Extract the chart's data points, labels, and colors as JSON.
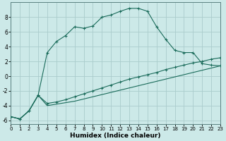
{
  "xlabel": "Humidex (Indice chaleur)",
  "background_color": "#cce9e8",
  "grid_color": "#aacccc",
  "line_color": "#1a6b5a",
  "xlim": [
    0,
    23
  ],
  "ylim": [
    -6.5,
    10.0
  ],
  "xticks": [
    0,
    1,
    2,
    3,
    4,
    5,
    6,
    7,
    8,
    9,
    10,
    11,
    12,
    13,
    14,
    15,
    16,
    17,
    18,
    19,
    20,
    21,
    22,
    23
  ],
  "yticks": [
    -6,
    -4,
    -2,
    0,
    2,
    4,
    6,
    8
  ],
  "curves": [
    {
      "x": [
        0,
        1,
        2,
        3,
        4,
        5,
        6,
        7,
        8,
        9,
        10,
        11,
        12,
        13,
        14,
        15,
        16,
        17,
        18,
        19,
        20,
        21,
        22,
        23
      ],
      "y": [
        -5.5,
        -5.8,
        -4.7,
        -2.6,
        3.2,
        4.7,
        5.5,
        6.7,
        6.5,
        6.8,
        8.0,
        8.3,
        8.8,
        9.2,
        9.2,
        8.8,
        6.7,
        5.0,
        3.5,
        3.2,
        3.2,
        1.7,
        1.5,
        1.4
      ],
      "marker": true,
      "linestyle": "-"
    },
    {
      "x": [
        0,
        1,
        2,
        3,
        4,
        5,
        6,
        7,
        8,
        9,
        10,
        11,
        12,
        13,
        14,
        15,
        16,
        17,
        18,
        19,
        20,
        21,
        22,
        23
      ],
      "y": [
        -5.5,
        -5.8,
        -4.7,
        -2.6,
        -3.7,
        -3.5,
        -3.2,
        -2.8,
        -2.4,
        -2.0,
        -1.6,
        -1.2,
        -0.8,
        -0.4,
        -0.1,
        0.2,
        0.5,
        0.9,
        1.2,
        1.5,
        1.8,
        2.0,
        2.3,
        2.5
      ],
      "marker": true,
      "linestyle": "-"
    },
    {
      "x": [
        0,
        1,
        2,
        3,
        4,
        5,
        6,
        7,
        8,
        9,
        10,
        11,
        12,
        13,
        14,
        15,
        16,
        17,
        18,
        19,
        20,
        21,
        22,
        23
      ],
      "y": [
        -5.5,
        -5.8,
        -4.7,
        -2.6,
        -4.0,
        -3.8,
        -3.6,
        -3.4,
        -3.1,
        -2.8,
        -2.5,
        -2.2,
        -1.9,
        -1.6,
        -1.3,
        -1.0,
        -0.7,
        -0.4,
        -0.1,
        0.2,
        0.5,
        0.8,
        1.1,
        1.4
      ],
      "marker": false,
      "linestyle": "-"
    }
  ]
}
